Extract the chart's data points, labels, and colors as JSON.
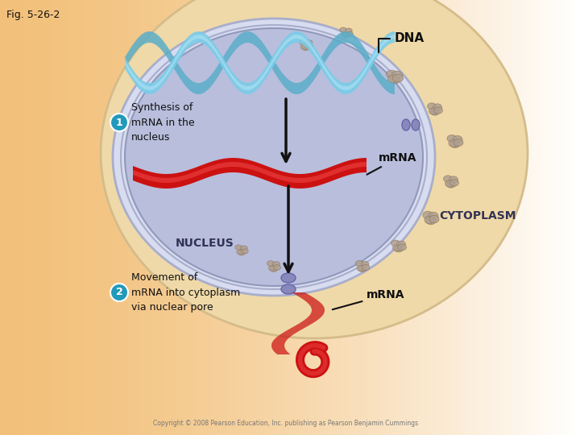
{
  "fig_label": "Fig. 5-26-2",
  "bg_color": "#FFFFFF",
  "cytoplasm_color_left": "#F2C07A",
  "cytoplasm_color_right": "#FFFFFF",
  "cell_body_color": "#EFD9A8",
  "cell_body_edge": "#D4BC8A",
  "nucleus_fill": "#B8BEDC",
  "nucleus_border": "#9099BB",
  "nuclear_envelope_color": "#D8DCF0",
  "nuclear_envelope_border": "#A8AECB",
  "dna_color1": "#7ACCE8",
  "dna_color2": "#5AAEC8",
  "mrna_ribbon_color": "#CC1111",
  "mrna_ribbon_highlight": "#EE4444",
  "mrna_shadow": "#881111",
  "arrow_color": "#111111",
  "label_dna": "DNA",
  "label_mrna1": "mRNA",
  "label_mrna2": "mRNA",
  "label_nucleus": "NUCLEUS",
  "label_cytoplasm": "CYTOPLASM",
  "step1_circle_color": "#2299BB",
  "step2_circle_color": "#2299BB",
  "step1_text": "Synthesis of\nmRNA in the\nnucleus",
  "step2_text": "Movement of\nmRNA into cytoplasm\nvia nuclear pore",
  "copyright": "Copyright © 2008 Pearson Education, Inc. publishing as Pearson Benjamin Cummings",
  "pore_color": "#8888BB",
  "pore_edge": "#6666AA",
  "organelle_color": "#B0A090",
  "organelle_edge": "#907860"
}
